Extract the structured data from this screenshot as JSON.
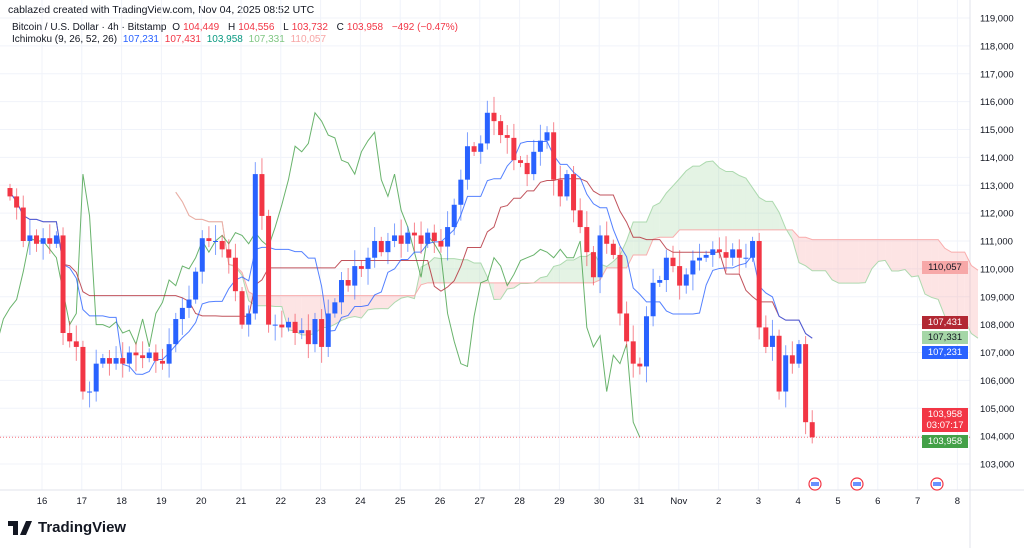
{
  "credit": "cablazed created with TradingView.com, Nov 04, 2025 08:52 UTC",
  "symbol": {
    "title": "Bitcoin / U.S. Dollar · 4h · Bitstamp",
    "open_label": "O",
    "open": "104,449",
    "high_label": "H",
    "high": "104,556",
    "low_label": "L",
    "low": "103,732",
    "close_label": "C",
    "close": "103,958",
    "change": "−492 (−0.47%)"
  },
  "indicator": {
    "name": "Ichimoku (9, 26, 52, 26)",
    "conversion": "107,231",
    "base": "107,431",
    "lagging": "103,958",
    "lead_a": "107,331",
    "lead_b": "110,057"
  },
  "price_labels": {
    "lead_b": "110,057",
    "base": "107,431",
    "lead_a": "107,331",
    "conversion": "107,231",
    "last_price": "103,958",
    "countdown": "03:07:17",
    "lagging": "103,958"
  },
  "colors": {
    "up": "#2962ff",
    "down": "#f23645",
    "conversion": "#2962ff",
    "base": "#b22833",
    "lagging": "#43a047",
    "cloud_up": "#a5d6a7",
    "cloud_down": "#f8a5a5"
  },
  "chart_data": {
    "type": "candlestick",
    "timeframe": "4h",
    "y_ticks": [
      "103,000",
      "104,000",
      "105,000",
      "106,000",
      "107,000",
      "108,000",
      "109,000",
      "110,000",
      "111,000",
      "112,000",
      "113,000",
      "114,000",
      "115,000",
      "116,000",
      "117,000",
      "118,000",
      "119,000"
    ],
    "ylim": [
      102500,
      119000
    ],
    "x_ticks": [
      "16",
      "17",
      "18",
      "19",
      "20",
      "21",
      "22",
      "23",
      "24",
      "25",
      "26",
      "27",
      "28",
      "29",
      "30",
      "31",
      "Nov",
      "2",
      "3",
      "4",
      "5",
      "6",
      "7",
      "8"
    ],
    "closes_thousands": [
      112.6,
      112.2,
      111.0,
      111.2,
      110.9,
      111.1,
      110.9,
      111.2,
      107.7,
      107.4,
      107.2,
      105.6,
      105.6,
      106.6,
      106.8,
      106.6,
      106.8,
      106.6,
      107.0,
      106.9,
      106.8,
      107.0,
      106.7,
      106.6,
      107.3,
      108.2,
      108.6,
      108.9,
      109.9,
      111.1,
      111.0,
      111.0,
      110.7,
      110.4,
      109.2,
      108.0,
      108.4,
      113.4,
      111.9,
      108.0,
      108.0,
      107.9,
      108.1,
      107.7,
      107.8,
      107.3,
      108.2,
      107.2,
      108.4,
      108.8,
      109.6,
      109.4,
      110.1,
      110.0,
      110.4,
      111.0,
      110.6,
      111.0,
      111.2,
      110.9,
      111.3,
      111.2,
      110.9,
      111.3,
      111.0,
      110.8,
      111.5,
      112.3,
      113.2,
      114.4,
      114.2,
      114.5,
      115.6,
      115.3,
      114.8,
      114.7,
      113.9,
      113.8,
      113.4,
      114.2,
      114.6,
      114.9,
      113.2,
      112.6,
      113.4,
      112.1,
      111.5,
      110.6,
      109.7,
      111.2,
      110.9,
      110.5,
      108.4,
      107.4,
      106.6,
      106.5,
      108.3,
      109.5,
      109.6,
      110.4,
      110.1,
      109.4,
      109.8,
      110.3,
      110.4,
      110.5,
      110.7,
      110.6,
      110.4,
      110.7,
      110.4,
      110.4,
      111.0,
      107.9,
      107.2,
      107.6,
      105.6,
      106.9,
      106.6,
      107.3,
      104.5,
      103.958
    ],
    "last_price": 103958,
    "events": [
      "us-flag-event",
      "us-flag-event",
      "us-flag-event"
    ]
  },
  "brand": "TradingView"
}
